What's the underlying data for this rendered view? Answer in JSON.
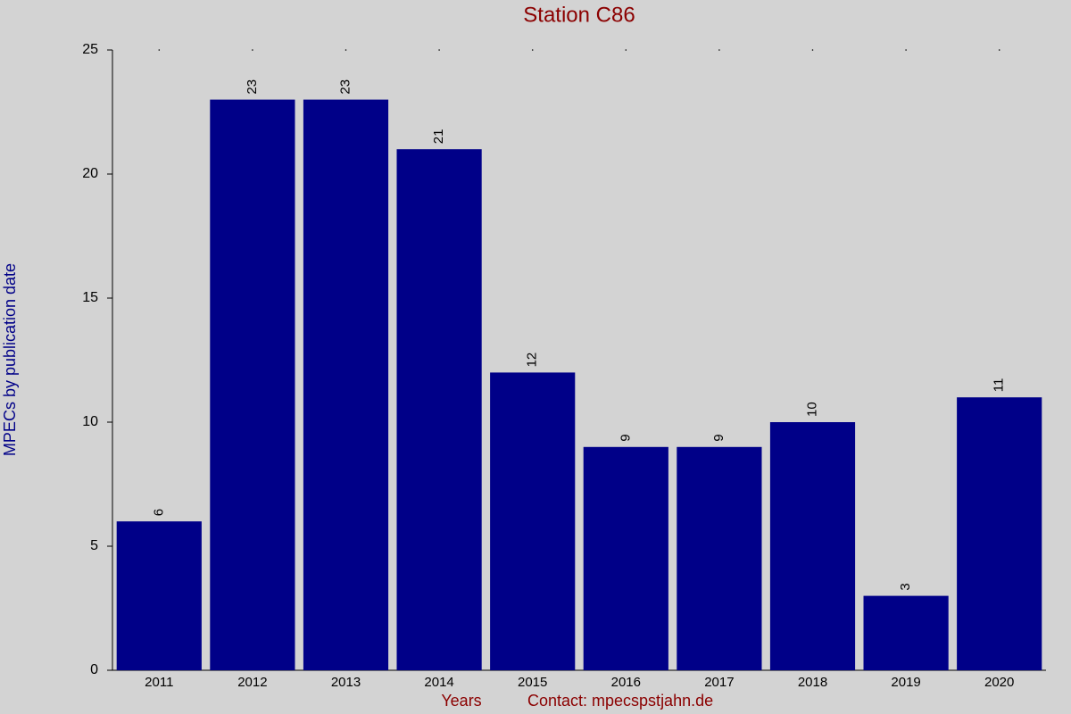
{
  "chart_data": {
    "type": "bar",
    "title": "Station C86",
    "y_label": "MPECs by publication date",
    "x_label": "Years",
    "contact": "Contact: mpecspstjahn.de",
    "categories": [
      "2011",
      "2012",
      "2013",
      "2014",
      "2015",
      "2016",
      "2017",
      "2018",
      "2019",
      "2020"
    ],
    "values": [
      6,
      23,
      23,
      21,
      12,
      9,
      9,
      10,
      3,
      11
    ],
    "color": "#000088",
    "ylim": [
      0,
      25
    ],
    "yticks": [
      0,
      5,
      10,
      15,
      20,
      25
    ],
    "grid": false
  }
}
